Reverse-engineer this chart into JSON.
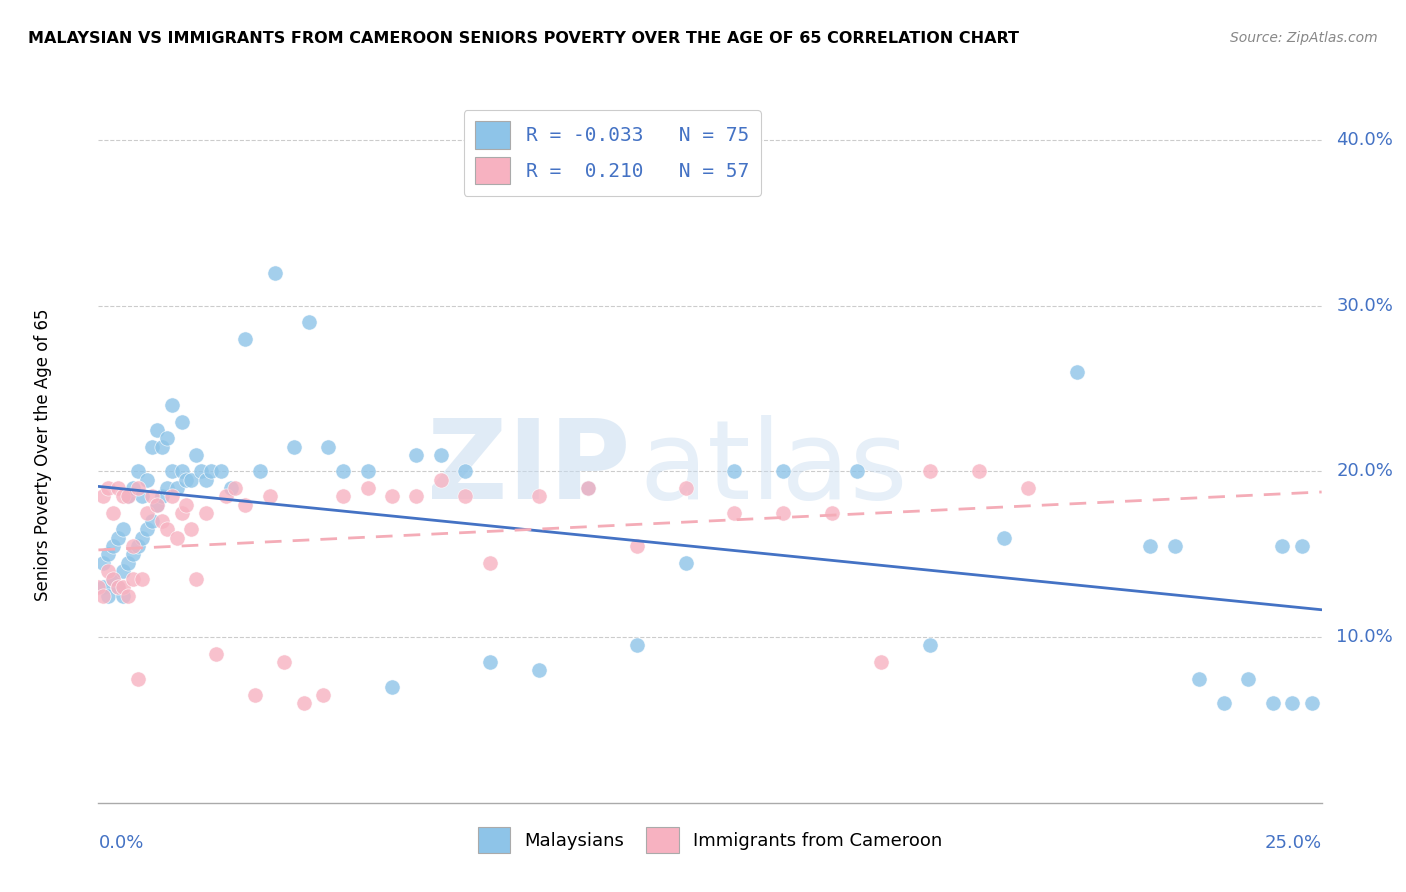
{
  "title": "MALAYSIAN VS IMMIGRANTS FROM CAMEROON SENIORS POVERTY OVER THE AGE OF 65 CORRELATION CHART",
  "source": "Source: ZipAtlas.com",
  "ylabel": "Seniors Poverty Over the Age of 65",
  "xlim": [
    0.0,
    0.25
  ],
  "ylim": [
    0.0,
    0.42
  ],
  "yaxis_tick_vals": [
    0.1,
    0.2,
    0.3,
    0.4
  ],
  "yaxis_tick_labels": [
    "10.0%",
    "20.0%",
    "30.0%",
    "40.0%"
  ],
  "legend_line1": "R = -0.033   N = 75",
  "legend_line2": "R =  0.210   N = 57",
  "color_blue": "#8EC4E8",
  "color_pink": "#F7B2C1",
  "color_line_blue": "#4472C4",
  "color_line_pink": "#F4ACB7",
  "watermark_zip": "ZIP",
  "watermark_atlas": "atlas",
  "malaysians_x": [
    0.001,
    0.001,
    0.002,
    0.002,
    0.003,
    0.003,
    0.004,
    0.004,
    0.005,
    0.005,
    0.005,
    0.006,
    0.006,
    0.007,
    0.007,
    0.008,
    0.008,
    0.009,
    0.009,
    0.01,
    0.01,
    0.011,
    0.011,
    0.012,
    0.012,
    0.013,
    0.013,
    0.014,
    0.014,
    0.015,
    0.015,
    0.016,
    0.017,
    0.017,
    0.018,
    0.019,
    0.02,
    0.021,
    0.022,
    0.023,
    0.025,
    0.027,
    0.03,
    0.033,
    0.036,
    0.04,
    0.043,
    0.047,
    0.055,
    0.06,
    0.065,
    0.07,
    0.08,
    0.09,
    0.1,
    0.11,
    0.12,
    0.13,
    0.14,
    0.155,
    0.17,
    0.185,
    0.2,
    0.215,
    0.22,
    0.225,
    0.23,
    0.235,
    0.24,
    0.242,
    0.244,
    0.246,
    0.248,
    0.05,
    0.075
  ],
  "malaysians_y": [
    0.13,
    0.145,
    0.125,
    0.15,
    0.135,
    0.155,
    0.13,
    0.16,
    0.125,
    0.14,
    0.165,
    0.145,
    0.185,
    0.15,
    0.19,
    0.155,
    0.2,
    0.16,
    0.185,
    0.165,
    0.195,
    0.17,
    0.215,
    0.18,
    0.225,
    0.185,
    0.215,
    0.19,
    0.22,
    0.2,
    0.24,
    0.19,
    0.2,
    0.23,
    0.195,
    0.195,
    0.21,
    0.2,
    0.195,
    0.2,
    0.2,
    0.19,
    0.28,
    0.2,
    0.32,
    0.215,
    0.29,
    0.215,
    0.2,
    0.07,
    0.21,
    0.21,
    0.085,
    0.08,
    0.19,
    0.095,
    0.145,
    0.2,
    0.2,
    0.2,
    0.095,
    0.16,
    0.26,
    0.155,
    0.155,
    0.075,
    0.06,
    0.075,
    0.06,
    0.155,
    0.06,
    0.155,
    0.06,
    0.2,
    0.2
  ],
  "cameroon_x": [
    0.0,
    0.001,
    0.001,
    0.002,
    0.002,
    0.003,
    0.003,
    0.004,
    0.004,
    0.005,
    0.005,
    0.006,
    0.006,
    0.007,
    0.007,
    0.008,
    0.008,
    0.009,
    0.01,
    0.011,
    0.012,
    0.013,
    0.014,
    0.015,
    0.016,
    0.017,
    0.018,
    0.019,
    0.02,
    0.022,
    0.024,
    0.026,
    0.028,
    0.03,
    0.032,
    0.035,
    0.038,
    0.042,
    0.046,
    0.05,
    0.055,
    0.06,
    0.065,
    0.07,
    0.075,
    0.08,
    0.09,
    0.1,
    0.11,
    0.12,
    0.13,
    0.14,
    0.15,
    0.16,
    0.17,
    0.18,
    0.19
  ],
  "cameroon_y": [
    0.13,
    0.125,
    0.185,
    0.19,
    0.14,
    0.135,
    0.175,
    0.13,
    0.19,
    0.13,
    0.185,
    0.125,
    0.185,
    0.135,
    0.155,
    0.19,
    0.075,
    0.135,
    0.175,
    0.185,
    0.18,
    0.17,
    0.165,
    0.185,
    0.16,
    0.175,
    0.18,
    0.165,
    0.135,
    0.175,
    0.09,
    0.185,
    0.19,
    0.18,
    0.065,
    0.185,
    0.085,
    0.06,
    0.065,
    0.185,
    0.19,
    0.185,
    0.185,
    0.195,
    0.185,
    0.145,
    0.185,
    0.19,
    0.155,
    0.19,
    0.175,
    0.175,
    0.175,
    0.085,
    0.2,
    0.2,
    0.19
  ]
}
